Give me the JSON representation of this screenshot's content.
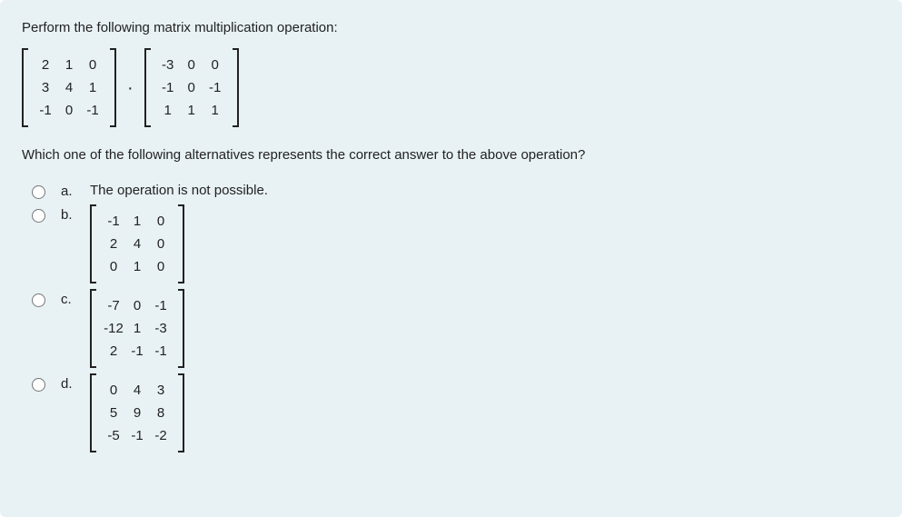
{
  "card": {
    "background": "#e8f2f5",
    "prompt": "Perform the following matrix multiplication operation:",
    "question": "Which one of the following alternatives represents the correct answer to the above operation?"
  },
  "matrix_A": {
    "rows": [
      [
        "2",
        "1",
        "0"
      ],
      [
        "3",
        "4",
        "1"
      ],
      [
        "-1",
        "0",
        "-1"
      ]
    ]
  },
  "matrix_B": {
    "rows": [
      [
        "-3",
        "0",
        "0"
      ],
      [
        "-1",
        "0",
        "-1"
      ],
      [
        "1",
        "1",
        "1"
      ]
    ]
  },
  "dot_symbol": "·",
  "options": {
    "a": {
      "letter": "a.",
      "text": "The operation is not possible."
    },
    "b": {
      "letter": "b.",
      "matrix": {
        "rows": [
          [
            "-1",
            "1",
            "0"
          ],
          [
            "2",
            "4",
            "0"
          ],
          [
            "0",
            "1",
            "0"
          ]
        ]
      }
    },
    "c": {
      "letter": "c.",
      "matrix": {
        "rows": [
          [
            "-7",
            "0",
            "-1"
          ],
          [
            "-12",
            "1",
            "-3"
          ],
          [
            "2",
            "-1",
            "-1"
          ]
        ]
      }
    },
    "d": {
      "letter": "d.",
      "matrix": {
        "rows": [
          [
            "0",
            "4",
            "3"
          ],
          [
            "5",
            "9",
            "8"
          ],
          [
            "-5",
            "-1",
            "-2"
          ]
        ]
      }
    }
  }
}
